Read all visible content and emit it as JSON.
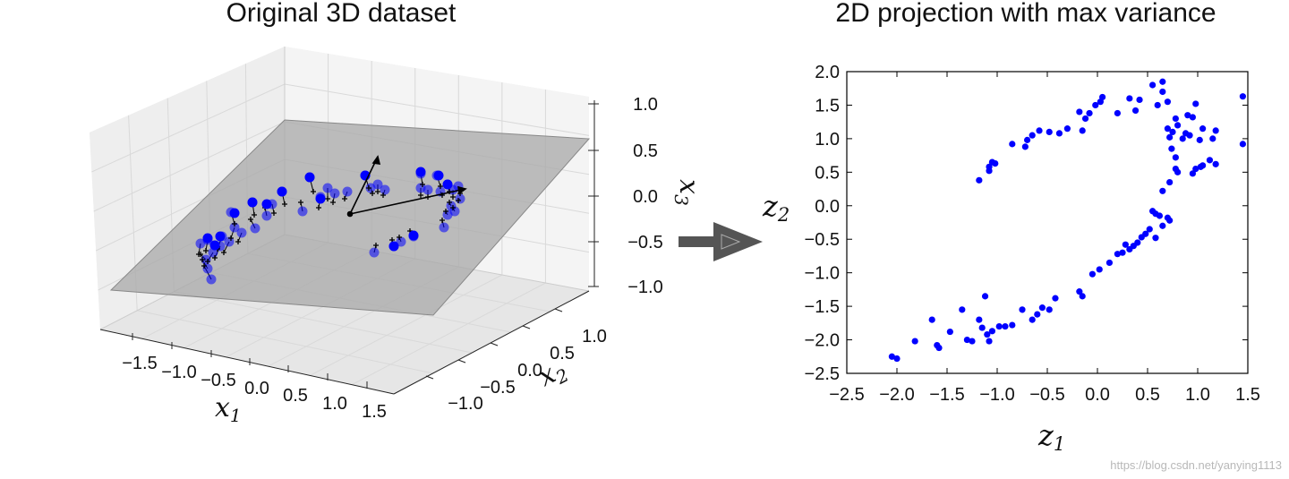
{
  "chart_data": [
    {
      "type": "scatter",
      "projection": "3d",
      "title": "Original 3D dataset",
      "xlabel": "x",
      "xlabel_sub": "1",
      "ylabel": "x",
      "ylabel_sub": "2",
      "zlabel": "x",
      "zlabel_sub": "3",
      "x_ticks": [
        "−1.5",
        "−1.0",
        "−0.5",
        "0.0",
        "0.5",
        "1.0",
        "1.5"
      ],
      "y_ticks": [
        "−1.0",
        "−0.5",
        "0.0",
        "0.5",
        "1.0"
      ],
      "z_ticks": [
        "−1.0",
        "−0.5",
        "0.0",
        "0.5",
        "1.0"
      ],
      "xlim": [
        -1.8,
        1.8
      ],
      "ylim": [
        -1.3,
        1.3
      ],
      "zlim": [
        -1.0,
        1.0
      ],
      "grid": true,
      "plane_color": "#a8a8a8",
      "point_color": "#0000ff",
      "projection_line_color": "#000000"
    },
    {
      "type": "scatter",
      "title": "2D projection with max variance",
      "xlabel": "z",
      "xlabel_sub": "1",
      "ylabel": "z",
      "ylabel_sub": "2",
      "xlim": [
        -2.5,
        1.5
      ],
      "ylim": [
        -2.5,
        2.0
      ],
      "x_ticks": [
        "−2.5",
        "−2.0",
        "−1.5",
        "−1.0",
        "−0.5",
        "0.0",
        "0.5",
        "1.0",
        "1.5"
      ],
      "y_ticks": [
        "2.0",
        "1.5",
        "1.0",
        "0.5",
        "0.0",
        "−0.5",
        "−1.0",
        "−1.5",
        "−2.0",
        "−2.5"
      ],
      "grid": false,
      "point_color": "#0000ff",
      "points": [
        [
          -2.05,
          -2.25
        ],
        [
          -2.0,
          -2.28
        ],
        [
          -1.82,
          -2.02
        ],
        [
          -1.65,
          -1.7
        ],
        [
          -1.6,
          -2.08
        ],
        [
          -1.58,
          -2.12
        ],
        [
          -1.47,
          -1.88
        ],
        [
          -1.35,
          -1.55
        ],
        [
          -1.3,
          -2.0
        ],
        [
          -1.25,
          -2.02
        ],
        [
          -1.18,
          -1.7
        ],
        [
          -1.15,
          -1.82
        ],
        [
          -1.12,
          -1.35
        ],
        [
          -1.1,
          -1.92
        ],
        [
          -1.05,
          -1.87
        ],
        [
          -1.08,
          -2.02
        ],
        [
          -0.98,
          -1.8
        ],
        [
          -0.92,
          -1.8
        ],
        [
          -0.85,
          -1.78
        ],
        [
          -0.75,
          -1.55
        ],
        [
          -0.65,
          -1.7
        ],
        [
          -0.6,
          -1.62
        ],
        [
          -0.55,
          -1.52
        ],
        [
          -0.48,
          -1.55
        ],
        [
          -0.42,
          -1.38
        ],
        [
          -0.18,
          -1.28
        ],
        [
          -0.15,
          -1.35
        ],
        [
          -0.05,
          -1.02
        ],
        [
          0.02,
          -0.95
        ],
        [
          0.12,
          -0.85
        ],
        [
          0.2,
          -0.72
        ],
        [
          0.25,
          -0.7
        ],
        [
          0.28,
          -0.58
        ],
        [
          0.32,
          -0.65
        ],
        [
          0.36,
          -0.6
        ],
        [
          0.4,
          -0.55
        ],
        [
          0.44,
          -0.47
        ],
        [
          0.48,
          -0.42
        ],
        [
          0.52,
          -0.35
        ],
        [
          0.58,
          -0.48
        ],
        [
          0.55,
          -0.08
        ],
        [
          0.58,
          -0.12
        ],
        [
          0.62,
          -0.15
        ],
        [
          0.65,
          -0.3
        ],
        [
          0.72,
          -0.22
        ],
        [
          0.7,
          -0.18
        ],
        [
          0.65,
          0.22
        ],
        [
          0.72,
          0.35
        ],
        [
          0.78,
          0.55
        ],
        [
          0.8,
          0.5
        ],
        [
          0.95,
          0.48
        ],
        [
          0.98,
          0.55
        ],
        [
          1.03,
          0.58
        ],
        [
          1.05,
          0.6
        ],
        [
          1.12,
          0.68
        ],
        [
          1.18,
          0.62
        ],
        [
          1.45,
          0.92
        ],
        [
          1.45,
          1.63
        ],
        [
          1.02,
          0.98
        ],
        [
          1.05,
          1.15
        ],
        [
          1.15,
          1.0
        ],
        [
          1.18,
          1.12
        ],
        [
          0.85,
          1.0
        ],
        [
          0.88,
          1.08
        ],
        [
          0.92,
          1.05
        ],
        [
          0.95,
          1.32
        ],
        [
          0.98,
          1.52
        ],
        [
          0.9,
          1.35
        ],
        [
          0.8,
          1.2
        ],
        [
          0.78,
          1.3
        ],
        [
          0.75,
          1.1
        ],
        [
          0.7,
          1.15
        ],
        [
          0.65,
          1.7
        ],
        [
          0.6,
          1.5
        ],
        [
          0.55,
          1.8
        ],
        [
          0.65,
          1.85
        ],
        [
          0.72,
          1.02
        ],
        [
          0.74,
          0.85
        ],
        [
          0.78,
          0.72
        ],
        [
          0.7,
          1.55
        ],
        [
          0.38,
          1.42
        ],
        [
          0.32,
          1.6
        ],
        [
          0.42,
          1.58
        ],
        [
          0.05,
          1.62
        ],
        [
          0.03,
          1.55
        ],
        [
          -0.02,
          1.5
        ],
        [
          -0.08,
          1.38
        ],
        [
          -0.12,
          1.3
        ],
        [
          -0.15,
          1.12
        ],
        [
          -0.18,
          1.4
        ],
        [
          -0.3,
          1.15
        ],
        [
          -0.38,
          1.08
        ],
        [
          -0.48,
          1.1
        ],
        [
          -0.58,
          1.12
        ],
        [
          -0.65,
          1.05
        ],
        [
          -0.7,
          0.98
        ],
        [
          -0.72,
          0.88
        ],
        [
          -0.85,
          0.92
        ],
        [
          -1.05,
          0.65
        ],
        [
          -1.08,
          0.58
        ],
        [
          -1.08,
          0.52
        ],
        [
          -1.02,
          0.63
        ],
        [
          -1.18,
          0.38
        ],
        [
          0.2,
          1.38
        ]
      ]
    }
  ],
  "arrow_color": "#555555",
  "watermark": "https://blog.csdn.net/yanying1113"
}
